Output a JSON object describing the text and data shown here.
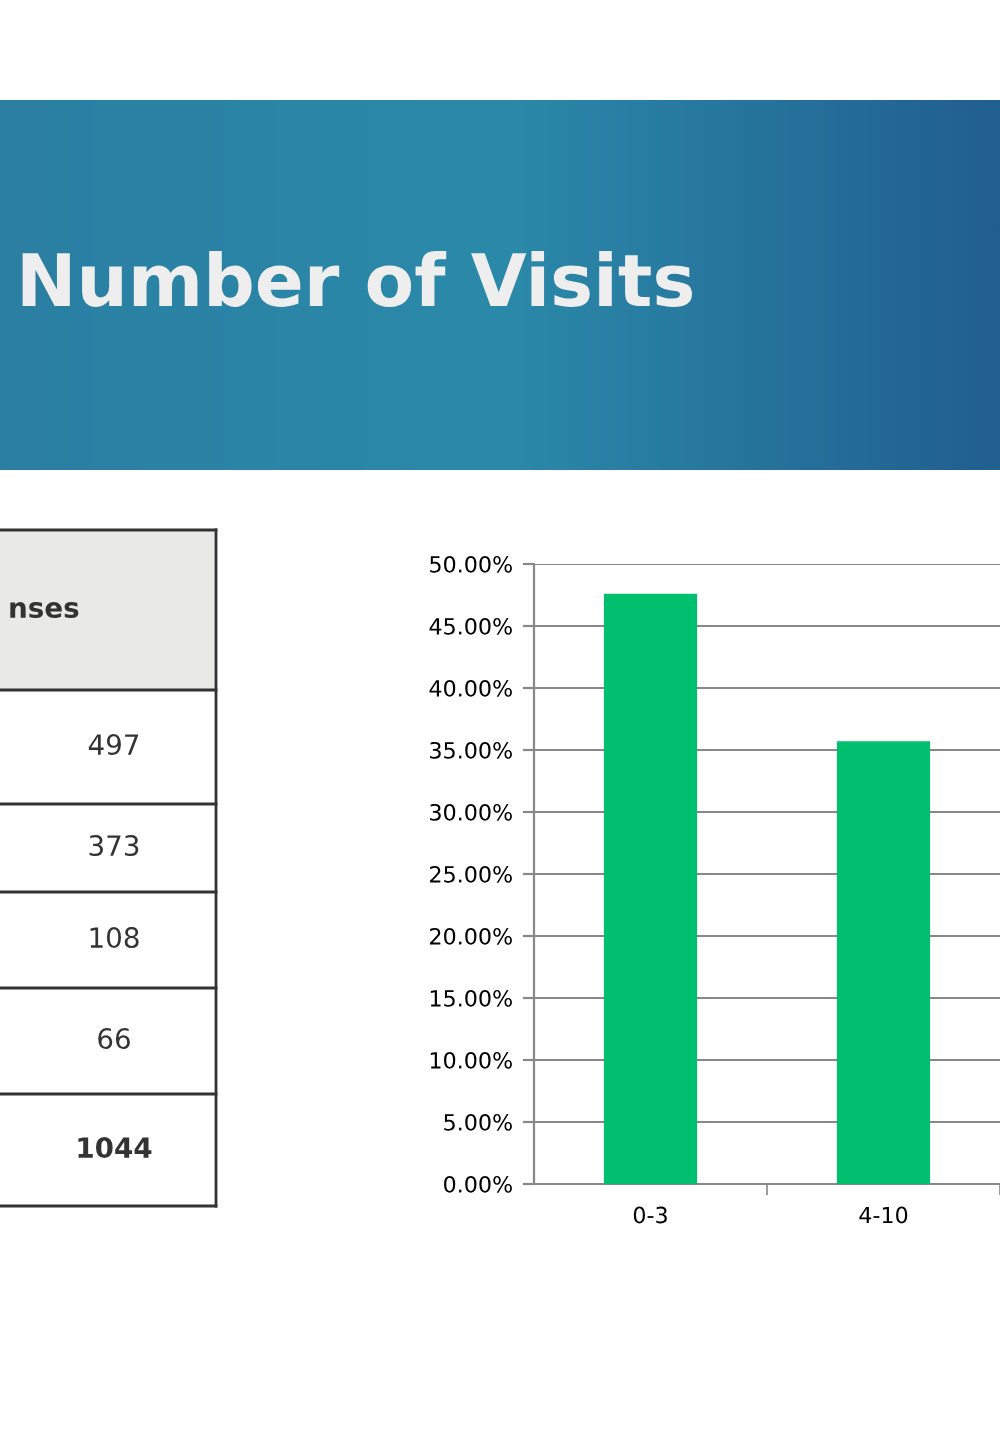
{
  "chart_data": [
    {
      "type": "other",
      "annotations": [
        "nses",
        "497",
        "373",
        "108",
        "66",
        "1044"
      ]
    },
    {
      "type": "bar",
      "title": "Number of Visits",
      "categories": [
        "0-3",
        "4-10"
      ],
      "values": [
        47.6,
        35.7
      ],
      "color": "#00bf6f",
      "ylim": [
        0,
        50
      ],
      "yticks": [
        {
          "value": 0,
          "label": "0.00%"
        },
        {
          "value": 5,
          "label": "5.00%"
        },
        {
          "value": 10,
          "label": "10.00%"
        },
        {
          "value": 15,
          "label": "15.00%"
        },
        {
          "value": 20,
          "label": "20.00%"
        },
        {
          "value": 25,
          "label": "25.00%"
        },
        {
          "value": 30,
          "label": "30.00%"
        },
        {
          "value": 35,
          "label": "35.00%"
        },
        {
          "value": 40,
          "label": "40.00%"
        },
        {
          "value": 45,
          "label": "45.00%"
        },
        {
          "value": 50,
          "label": "50.00%"
        }
      ],
      "grid": "y",
      "legend": false
    }
  ]
}
